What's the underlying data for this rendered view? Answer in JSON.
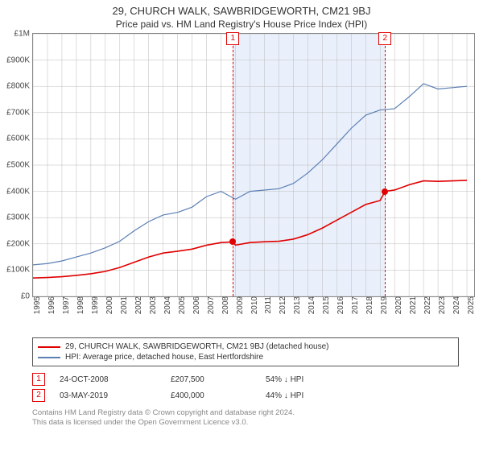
{
  "title": "29, CHURCH WALK, SAWBRIDGEWORTH, CM21 9BJ",
  "subtitle": "Price paid vs. HM Land Registry's House Price Index (HPI)",
  "background_color": "#ffffff",
  "text_color": "#333333",
  "chart": {
    "plot_border_color": "#888888",
    "grid_color": "#bbbbbb",
    "shade_color": "#eaf0fb",
    "shade_start_year": 2008.82,
    "shade_end_year": 2019.34,
    "x": {
      "min": 1995,
      "max": 2025.5,
      "ticks": [
        1995,
        1996,
        1997,
        1998,
        1999,
        2000,
        2001,
        2002,
        2003,
        2004,
        2005,
        2006,
        2007,
        2008,
        2009,
        2010,
        2011,
        2012,
        2013,
        2014,
        2015,
        2016,
        2017,
        2018,
        2019,
        2020,
        2021,
        2022,
        2023,
        2024,
        2025
      ],
      "label_fontsize": 10
    },
    "y": {
      "min": 0,
      "max": 1000000,
      "ticks": [
        {
          "v": 0,
          "label": "£0"
        },
        {
          "v": 100000,
          "label": "£100K"
        },
        {
          "v": 200000,
          "label": "£200K"
        },
        {
          "v": 300000,
          "label": "£300K"
        },
        {
          "v": 400000,
          "label": "£400K"
        },
        {
          "v": 500000,
          "label": "£500K"
        },
        {
          "v": 600000,
          "label": "£600K"
        },
        {
          "v": 700000,
          "label": "£700K"
        },
        {
          "v": 800000,
          "label": "£800K"
        },
        {
          "v": 900000,
          "label": "£900K"
        },
        {
          "v": 1000000,
          "label": "£1M"
        }
      ],
      "label_fontsize": 10
    },
    "series": [
      {
        "name": "property",
        "color": "#e00000",
        "width": 1.6,
        "points": [
          [
            1995,
            70000
          ],
          [
            1996,
            72000
          ],
          [
            1997,
            75000
          ],
          [
            1998,
            80000
          ],
          [
            1999,
            86000
          ],
          [
            2000,
            95000
          ],
          [
            2001,
            110000
          ],
          [
            2002,
            130000
          ],
          [
            2003,
            150000
          ],
          [
            2004,
            165000
          ],
          [
            2005,
            172000
          ],
          [
            2006,
            180000
          ],
          [
            2007,
            195000
          ],
          [
            2008,
            205000
          ],
          [
            2008.82,
            207500
          ],
          [
            2009,
            195000
          ],
          [
            2010,
            205000
          ],
          [
            2011,
            208000
          ],
          [
            2012,
            210000
          ],
          [
            2013,
            218000
          ],
          [
            2014,
            235000
          ],
          [
            2015,
            260000
          ],
          [
            2016,
            290000
          ],
          [
            2017,
            320000
          ],
          [
            2018,
            350000
          ],
          [
            2019,
            365000
          ],
          [
            2019.34,
            400000
          ],
          [
            2020,
            405000
          ],
          [
            2021,
            425000
          ],
          [
            2022,
            440000
          ],
          [
            2023,
            438000
          ],
          [
            2024,
            440000
          ],
          [
            2025,
            442000
          ]
        ]
      },
      {
        "name": "hpi",
        "color": "#5b7fb4",
        "width": 1.2,
        "points": [
          [
            1995,
            120000
          ],
          [
            1996,
            125000
          ],
          [
            1997,
            135000
          ],
          [
            1998,
            150000
          ],
          [
            1999,
            165000
          ],
          [
            2000,
            185000
          ],
          [
            2001,
            210000
          ],
          [
            2002,
            250000
          ],
          [
            2003,
            285000
          ],
          [
            2004,
            310000
          ],
          [
            2005,
            320000
          ],
          [
            2006,
            340000
          ],
          [
            2007,
            380000
          ],
          [
            2008,
            400000
          ],
          [
            2009,
            370000
          ],
          [
            2010,
            400000
          ],
          [
            2011,
            405000
          ],
          [
            2012,
            410000
          ],
          [
            2013,
            430000
          ],
          [
            2014,
            470000
          ],
          [
            2015,
            520000
          ],
          [
            2016,
            580000
          ],
          [
            2017,
            640000
          ],
          [
            2018,
            690000
          ],
          [
            2019,
            710000
          ],
          [
            2020,
            715000
          ],
          [
            2021,
            760000
          ],
          [
            2022,
            810000
          ],
          [
            2023,
            790000
          ],
          [
            2024,
            795000
          ],
          [
            2025,
            800000
          ]
        ]
      }
    ],
    "markers": [
      {
        "n": "1",
        "year": 2008.82,
        "price": 207500,
        "color": "#e00000"
      },
      {
        "n": "2",
        "year": 2019.34,
        "price": 400000,
        "color": "#e00000"
      }
    ]
  },
  "legend": {
    "items": [
      {
        "color": "#e00000",
        "label": "29, CHURCH WALK, SAWBRIDGEWORTH, CM21 9BJ (detached house)"
      },
      {
        "color": "#5b7fb4",
        "label": "HPI: Average price, detached house, East Hertfordshire"
      }
    ]
  },
  "price_rows": [
    {
      "n": "1",
      "color": "#e00000",
      "date": "24-OCT-2008",
      "price": "£207,500",
      "delta": "54% ↓ HPI"
    },
    {
      "n": "2",
      "color": "#e00000",
      "date": "03-MAY-2019",
      "price": "£400,000",
      "delta": "44% ↓ HPI"
    }
  ],
  "copyright": {
    "line1": "Contains HM Land Registry data © Crown copyright and database right 2024.",
    "line2": "This data is licensed under the Open Government Licence v3.0."
  }
}
